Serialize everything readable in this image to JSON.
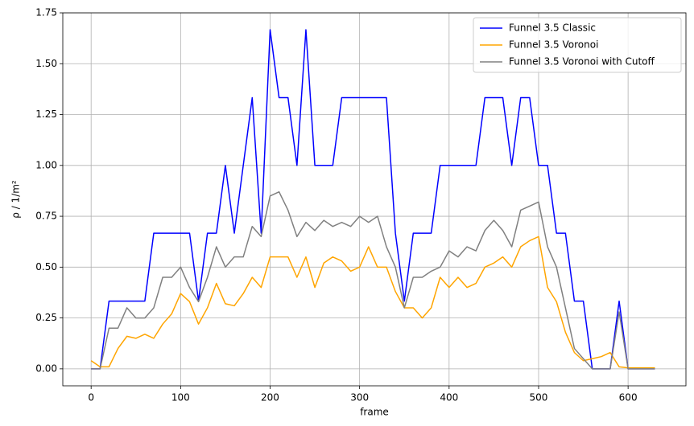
{
  "chart_data": {
    "type": "line",
    "xlabel": "frame",
    "ylabel": "ρ / 1/m²",
    "x": [
      0,
      10,
      20,
      30,
      40,
      50,
      60,
      70,
      80,
      90,
      100,
      110,
      120,
      130,
      140,
      150,
      160,
      170,
      180,
      190,
      200,
      210,
      220,
      230,
      240,
      250,
      260,
      270,
      280,
      290,
      300,
      310,
      320,
      330,
      340,
      350,
      360,
      370,
      380,
      390,
      400,
      410,
      420,
      430,
      440,
      450,
      460,
      470,
      480,
      490,
      500,
      510,
      520,
      530,
      540,
      550,
      560,
      570,
      580,
      590,
      600,
      610,
      620,
      630
    ],
    "series": [
      {
        "name": "Funnel 3.5 Classic",
        "color": "#0000ff",
        "values": [
          0,
          0,
          0.333,
          0.333,
          0.333,
          0.333,
          0.333,
          0.667,
          0.667,
          0.667,
          0.667,
          0.667,
          0.333,
          0.667,
          0.667,
          1.0,
          0.667,
          1.0,
          1.333,
          0.667,
          1.667,
          1.333,
          1.333,
          1.0,
          1.667,
          1.0,
          1.0,
          1.0,
          1.333,
          1.333,
          1.333,
          1.333,
          1.333,
          1.333,
          0.667,
          0.333,
          0.667,
          0.667,
          0.667,
          1.0,
          1.0,
          1.0,
          1.0,
          1.0,
          1.333,
          1.333,
          1.333,
          1.0,
          1.333,
          1.333,
          1.0,
          1.0,
          0.667,
          0.667,
          0.333,
          0.333,
          0,
          0,
          0,
          0.333,
          0,
          0,
          0,
          0
        ]
      },
      {
        "name": "Funnel 3.5 Voronoi",
        "color": "#ffa500",
        "values": [
          0.04,
          0.01,
          0.01,
          0.1,
          0.16,
          0.15,
          0.17,
          0.15,
          0.22,
          0.27,
          0.37,
          0.33,
          0.22,
          0.3,
          0.42,
          0.32,
          0.31,
          0.37,
          0.45,
          0.4,
          0.55,
          0.55,
          0.55,
          0.45,
          0.55,
          0.4,
          0.52,
          0.55,
          0.53,
          0.48,
          0.5,
          0.6,
          0.5,
          0.5,
          0.38,
          0.3,
          0.3,
          0.25,
          0.3,
          0.45,
          0.4,
          0.45,
          0.4,
          0.42,
          0.5,
          0.52,
          0.55,
          0.5,
          0.6,
          0.63,
          0.65,
          0.4,
          0.33,
          0.18,
          0.08,
          0.04,
          0.05,
          0.06,
          0.08,
          0.01,
          0.005,
          0.005,
          0.005,
          0.005
        ]
      },
      {
        "name": "Funnel 3.5 Voronoi with Cutoff",
        "color": "#808080",
        "values": [
          0,
          0,
          0.2,
          0.2,
          0.3,
          0.25,
          0.25,
          0.3,
          0.45,
          0.45,
          0.5,
          0.4,
          0.33,
          0.45,
          0.6,
          0.5,
          0.55,
          0.55,
          0.7,
          0.65,
          0.85,
          0.87,
          0.78,
          0.65,
          0.72,
          0.68,
          0.73,
          0.7,
          0.72,
          0.7,
          0.75,
          0.72,
          0.75,
          0.6,
          0.5,
          0.3,
          0.45,
          0.45,
          0.48,
          0.5,
          0.58,
          0.55,
          0.6,
          0.58,
          0.68,
          0.73,
          0.68,
          0.6,
          0.78,
          0.8,
          0.82,
          0.6,
          0.5,
          0.3,
          0.1,
          0.05,
          0,
          0,
          0,
          0.28,
          0,
          0,
          0,
          0
        ]
      }
    ],
    "xlim": [
      -31.65,
      664.65
    ],
    "xticks": [
      0,
      100,
      200,
      300,
      400,
      500,
      600
    ],
    "ylim": [
      -0.0835,
      1.75
    ],
    "yticks": [
      {
        "value": 0,
        "label": "0.00"
      },
      {
        "value": 0.25,
        "label": "0.25"
      },
      {
        "value": 0.5,
        "label": "0.50"
      },
      {
        "value": 0.75,
        "label": "0.75"
      },
      {
        "value": 1,
        "label": "1.00"
      },
      {
        "value": 1.25,
        "label": "1.25"
      },
      {
        "value": 1.5,
        "label": "1.50"
      },
      {
        "value": 1.75,
        "label": "1.75"
      }
    ],
    "grid": true,
    "legend": "upper right"
  }
}
